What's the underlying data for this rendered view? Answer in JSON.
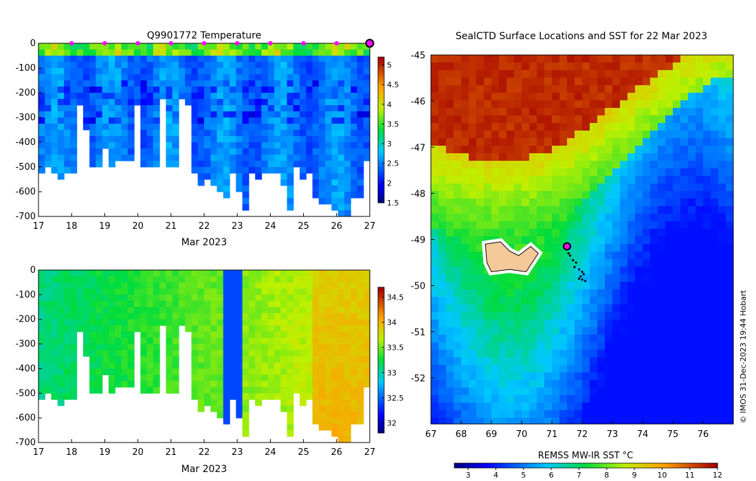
{
  "chart_data": [
    {
      "type": "heatmap",
      "title": "Q9901772  Temperature",
      "xlabel": "Mar 2023",
      "x_ticks": [
        "17",
        "18",
        "19",
        "20",
        "21",
        "22",
        "23",
        "24",
        "25",
        "26",
        "27"
      ],
      "xlim": [
        17,
        27
      ],
      "ylim": [
        -700,
        0
      ],
      "y_ticks": [
        "0",
        "-100",
        "-200",
        "-300",
        "-400",
        "-500",
        "-600",
        "-700"
      ],
      "colorbar": {
        "min": 1.5,
        "max": 5.2,
        "ticks": [
          "1.5",
          "2",
          "2.5",
          "3",
          "3.5",
          "4",
          "4.5",
          "5"
        ]
      },
      "surface_markers_days": [
        18,
        19,
        20,
        21,
        22,
        23,
        24,
        25,
        26
      ],
      "latest_marker_day": 27,
      "profile_bottom_depths_m": [
        -510,
        -500,
        -520,
        -530,
        -510,
        -515,
        -230,
        -345,
        -480,
        -480,
        -410,
        -500,
        -470,
        -470,
        -470,
        -230,
        -495,
        -500,
        -490,
        -205,
        -485,
        -495,
        -220,
        -230,
        -510,
        -555,
        -535,
        -570,
        -600,
        -605,
        -510,
        -600,
        -655,
        -505,
        -550,
        -525,
        -520,
        -525,
        -555,
        -655,
        -490,
        -540,
        -525,
        -615,
        -650,
        -635,
        -675,
        -700,
        -700,
        -615,
        -615,
        -455
      ]
    },
    {
      "type": "heatmap",
      "title": "",
      "xlabel": "Mar 2023",
      "x_ticks": [
        "17",
        "18",
        "19",
        "20",
        "21",
        "22",
        "23",
        "24",
        "25",
        "26",
        "27"
      ],
      "xlim": [
        17,
        27
      ],
      "ylim": [
        -700,
        0
      ],
      "y_ticks": [
        "0",
        "-100",
        "-200",
        "-300",
        "-400",
        "-500",
        "-600",
        "-700"
      ],
      "colorbar": {
        "min": 31.8,
        "max": 34.7,
        "ticks": [
          "32",
          "32.5",
          "33",
          "33.5",
          "34",
          "34.5"
        ]
      }
    },
    {
      "type": "heatmap",
      "title": "SealCTD Surface Locations and SST for 22 Mar 2023",
      "xlim": [
        67,
        77
      ],
      "ylim": [
        -53,
        -45
      ],
      "x_ticks": [
        "67",
        "68",
        "69",
        "70",
        "71",
        "72",
        "73",
        "74",
        "75",
        "76"
      ],
      "y_ticks": [
        "-45",
        "-46",
        "-47",
        "-48",
        "-49",
        "-50",
        "-51",
        "-52"
      ],
      "colorbar": {
        "label": "REMSS MW-IR SST °C",
        "min": 2.5,
        "max": 12,
        "ticks": [
          "3",
          "4",
          "5",
          "6",
          "7",
          "8",
          "9",
          "10",
          "11",
          "12"
        ]
      },
      "track_lon": [
        71.5,
        71.55,
        71.6,
        71.7,
        71.8,
        71.75,
        71.9,
        72.0,
        72.05,
        71.95,
        71.9,
        72.0,
        72.1
      ],
      "track_lat": [
        -49.15,
        -49.3,
        -49.35,
        -49.45,
        -49.5,
        -49.6,
        -49.65,
        -49.7,
        -49.75,
        -49.8,
        -49.85,
        -49.87,
        -49.9
      ],
      "latest_position": {
        "lon": 71.5,
        "lat": -49.15
      }
    }
  ],
  "credit": "© IMOS 31-Dec-2023 19:44 Hobart",
  "colors": {
    "marker": "#ff00ff",
    "land": "#f5c89a"
  }
}
